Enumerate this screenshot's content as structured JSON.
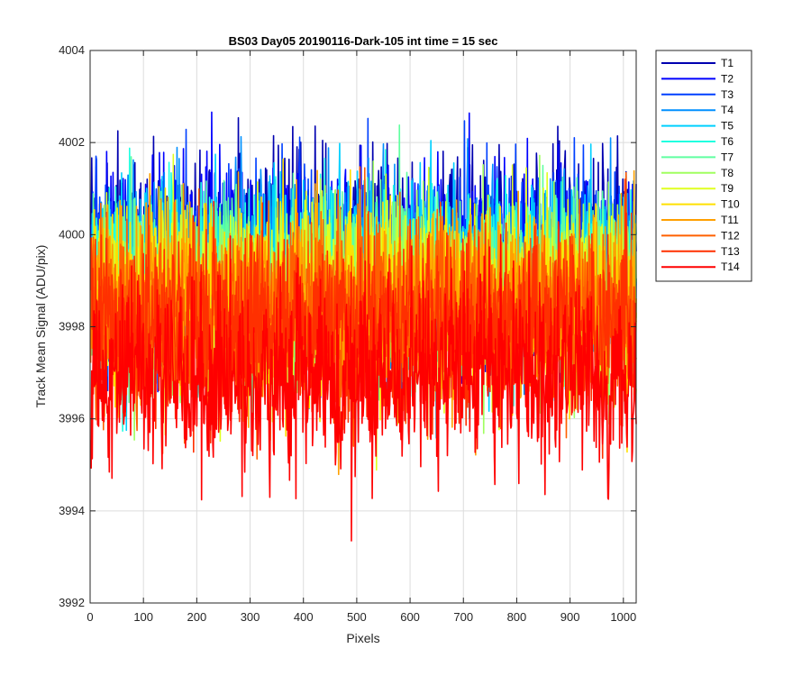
{
  "chart_data": {
    "type": "line",
    "title": "BS03 Day05 20190116-Dark-105 int time = 15 sec",
    "xlabel": "Pixels",
    "ylabel": "Track Mean Signal (ADU/pix)",
    "xlim": [
      0,
      1024
    ],
    "ylim": [
      3992,
      4004
    ],
    "xticks": [
      0,
      100,
      200,
      300,
      400,
      500,
      600,
      700,
      800,
      900,
      1000
    ],
    "yticks": [
      3992,
      3994,
      3996,
      3998,
      4000,
      4002,
      4004
    ],
    "grid": true,
    "legend_position": "outside-right",
    "x_count": 1024,
    "noise_sd": 1.0,
    "series": [
      {
        "name": "T1",
        "color": "#0000b0",
        "mean": 3999.8
      },
      {
        "name": "T2",
        "color": "#0000ff",
        "mean": 3999.5
      },
      {
        "name": "T3",
        "color": "#0040ff",
        "mean": 3999.3
      },
      {
        "name": "T4",
        "color": "#0090ff",
        "mean": 3999.2
      },
      {
        "name": "T5",
        "color": "#00d0ff",
        "mean": 3999.1
      },
      {
        "name": "T6",
        "color": "#20ffe0",
        "mean": 3999.0
      },
      {
        "name": "T7",
        "color": "#60ffa0",
        "mean": 3998.9
      },
      {
        "name": "T8",
        "color": "#a0ff60",
        "mean": 3998.8
      },
      {
        "name": "T9",
        "color": "#e0ff20",
        "mean": 3998.6
      },
      {
        "name": "T10",
        "color": "#ffe000",
        "mean": 3998.5
      },
      {
        "name": "T11",
        "color": "#ffa000",
        "mean": 3998.4
      },
      {
        "name": "T12",
        "color": "#ff6000",
        "mean": 3998.2
      },
      {
        "name": "T13",
        "color": "#ff3000",
        "mean": 3998.0
      },
      {
        "name": "T14",
        "color": "#ff0000",
        "mean": 3996.9
      }
    ]
  }
}
